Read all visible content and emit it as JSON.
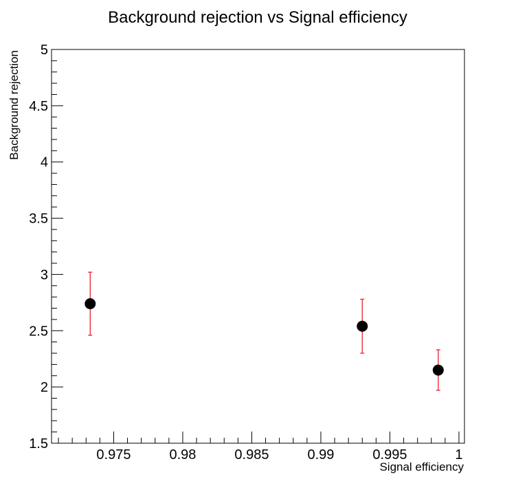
{
  "chart_data": {
    "type": "scatter",
    "title": "Background rejection vs Signal efficiency",
    "xlabel": "Signal efficiency",
    "ylabel": "Background rejection",
    "xlim": [
      0.9705,
      1.0004
    ],
    "ylim": [
      1.5,
      5
    ],
    "x_ticks": [
      {
        "value": 0.975,
        "label": "0.975"
      },
      {
        "value": 0.98,
        "label": "0.98"
      },
      {
        "value": 0.985,
        "label": "0.985"
      },
      {
        "value": 0.99,
        "label": "0.99"
      },
      {
        "value": 0.995,
        "label": "0.995"
      },
      {
        "value": 1.0,
        "label": "1"
      }
    ],
    "y_ticks": [
      {
        "value": 1.5,
        "label": "1.5"
      },
      {
        "value": 2,
        "label": "2"
      },
      {
        "value": 2.5,
        "label": "2.5"
      },
      {
        "value": 3,
        "label": "3"
      },
      {
        "value": 3.5,
        "label": "3.5"
      },
      {
        "value": 4,
        "label": "4"
      },
      {
        "value": 4.5,
        "label": "4.5"
      },
      {
        "value": 5,
        "label": "5"
      }
    ],
    "x_minor_step": 0.001,
    "y_minor_step": 0.1,
    "points": [
      {
        "x": 0.9733,
        "y": 2.74,
        "y_low": 2.46,
        "y_high": 3.02
      },
      {
        "x": 0.993,
        "y": 2.54,
        "y_low": 2.3,
        "y_high": 2.78
      },
      {
        "x": 0.9985,
        "y": 2.15,
        "y_low": 1.97,
        "y_high": 2.33
      }
    ],
    "grid": false,
    "colors": {
      "marker": "#000000",
      "error_bar": "#e8202a",
      "frame": "#000000"
    }
  }
}
